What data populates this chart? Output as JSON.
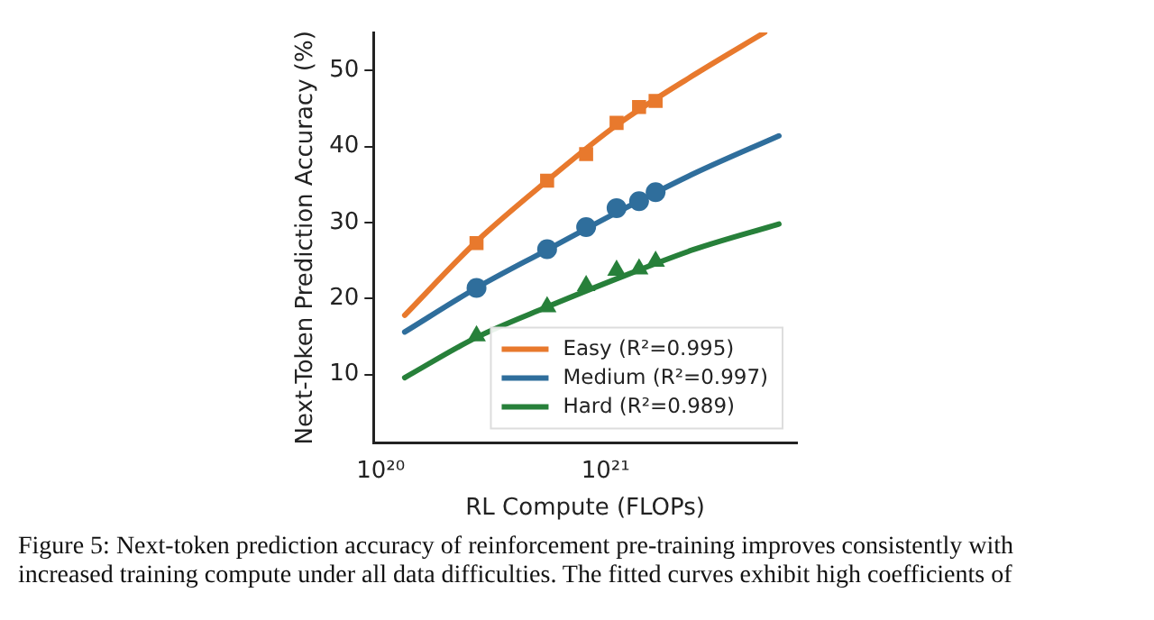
{
  "chart_data": {
    "type": "scatter",
    "xlabel": "RL Compute (FLOPs)",
    "ylabel": "Next-Token Prediction Accuracy (%)",
    "log": "x",
    "xlim": [
      9.3e+19,
      7.1e+21
    ],
    "xticks": [
      {
        "value": 1e+20,
        "label": "10²⁰"
      },
      {
        "value": 1e+21,
        "label": "10²¹"
      }
    ],
    "ylim": [
      1,
      55
    ],
    "yticks": [
      10,
      20,
      30,
      40,
      50
    ],
    "grid": false,
    "legend": "bottom right",
    "series": [
      {
        "name": "Easy (R²=0.995)",
        "type": "line",
        "marker": "none",
        "color": "#e8792d",
        "x": [
          1.28e+20,
          2.67e+20,
          5.5e+20,
          1.12e+21,
          2.5e+21,
          5.1e+21
        ],
        "values": [
          17.8,
          27.5,
          35.5,
          42.8,
          49.5,
          55
        ]
      },
      {
        "name": "Medium (R²=0.997)",
        "type": "line",
        "marker": "none",
        "color": "#2f6e9c",
        "x": [
          1.28e+20,
          2.67e+20,
          5.5e+20,
          1.12e+21,
          2.5e+21,
          5.9e+21
        ],
        "values": [
          15.6,
          21.4,
          26.4,
          31.3,
          36.5,
          41.4
        ]
      },
      {
        "name": "Hard (R²=0.989)",
        "type": "line",
        "marker": "none",
        "color": "#27803a",
        "x": [
          1.28e+20,
          2.67e+20,
          5.5e+20,
          1.12e+21,
          2.5e+21,
          5.9e+21
        ],
        "values": [
          9.6,
          14.9,
          18.9,
          22.6,
          26.5,
          29.8
        ]
      },
      {
        "type": "scatter",
        "marker": "square",
        "color": "#e8792d",
        "x": [
          2.67e+20,
          5.5e+20,
          8.2e+20,
          1.12e+21,
          1.41e+21,
          1.67e+21
        ],
        "values": [
          27.3,
          35.5,
          39.0,
          43.1,
          45.2,
          46.0
        ]
      },
      {
        "type": "scatter",
        "marker": "circle",
        "color": "#2f6e9c",
        "x": [
          2.67e+20,
          5.5e+20,
          8.2e+20,
          1.12e+21,
          1.41e+21,
          1.67e+21
        ],
        "values": [
          21.4,
          26.5,
          29.4,
          31.9,
          32.8,
          34.0
        ]
      },
      {
        "type": "scatter",
        "marker": "triangle",
        "color": "#27803a",
        "x": [
          2.67e+20,
          5.5e+20,
          8.2e+20,
          1.12e+21,
          1.41e+21,
          1.67e+21
        ],
        "values": [
          15.1,
          18.9,
          21.7,
          23.7,
          23.9,
          24.9
        ]
      }
    ],
    "annotations": [
      "Figure 5: Next-token prediction accuracy of reinforcement pre-training improves consistently with increased training compute under all data difficulties. The fitted curves exhibit high coefficients of"
    ]
  }
}
